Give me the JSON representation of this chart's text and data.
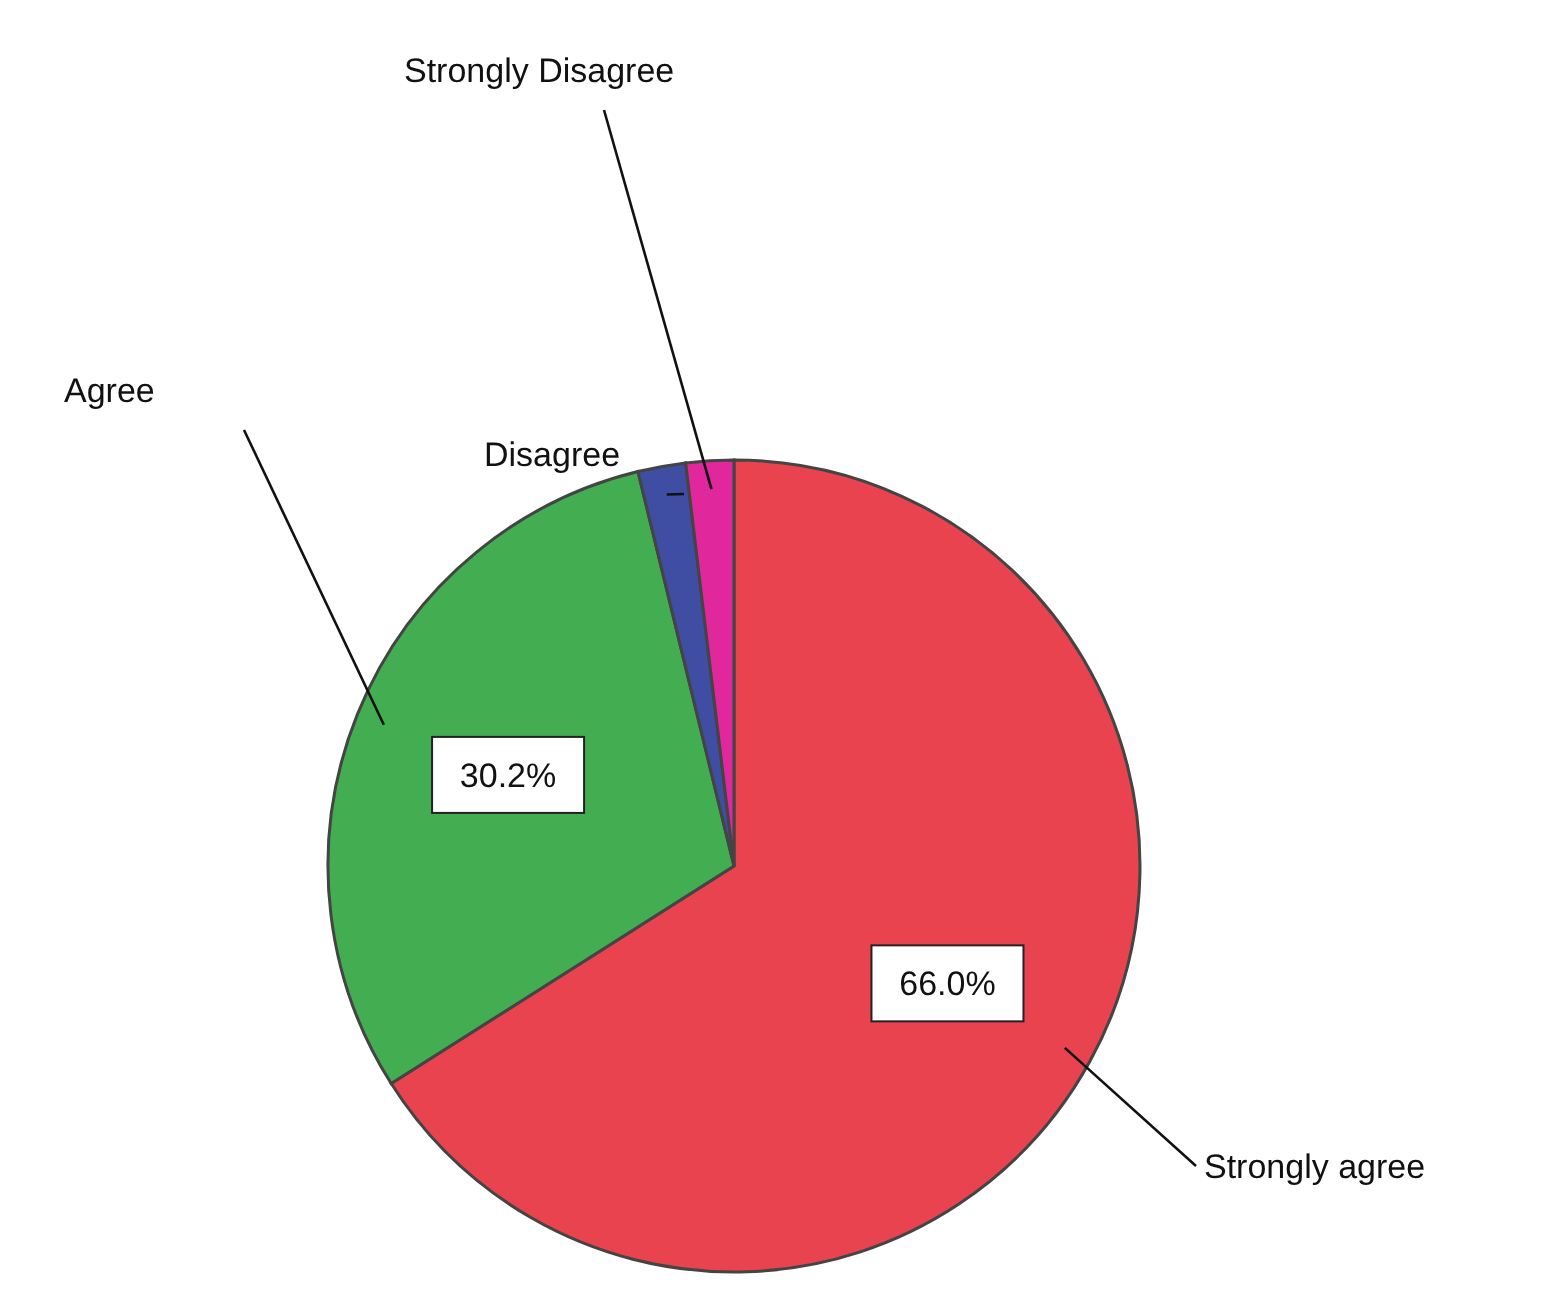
{
  "chart_data": {
    "type": "pie",
    "categories": [
      "Strongly agree",
      "Agree",
      "Disagree",
      "Strongly Disagree"
    ],
    "values": [
      66.0,
      30.2,
      1.9,
      1.9
    ],
    "colors": [
      "#e8434e",
      "#43ad52",
      "#3f4ea3",
      "#e0279b"
    ],
    "value_labels": [
      "66.0%",
      "30.2%",
      null,
      null
    ]
  }
}
